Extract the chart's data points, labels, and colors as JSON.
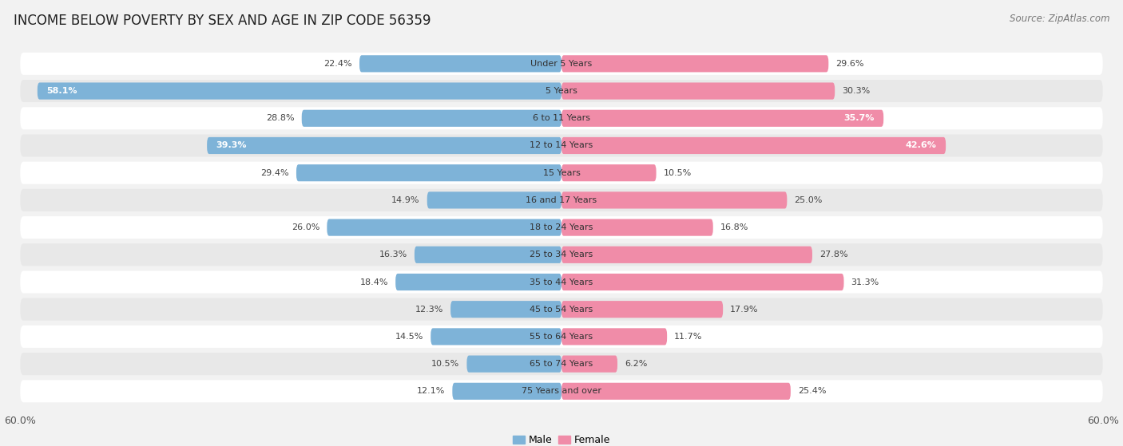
{
  "title": "INCOME BELOW POVERTY BY SEX AND AGE IN ZIP CODE 56359",
  "source": "Source: ZipAtlas.com",
  "categories": [
    "Under 5 Years",
    "5 Years",
    "6 to 11 Years",
    "12 to 14 Years",
    "15 Years",
    "16 and 17 Years",
    "18 to 24 Years",
    "25 to 34 Years",
    "35 to 44 Years",
    "45 to 54 Years",
    "55 to 64 Years",
    "65 to 74 Years",
    "75 Years and over"
  ],
  "male_values": [
    22.4,
    58.1,
    28.8,
    39.3,
    29.4,
    14.9,
    26.0,
    16.3,
    18.4,
    12.3,
    14.5,
    10.5,
    12.1
  ],
  "female_values": [
    29.6,
    30.3,
    35.7,
    42.6,
    10.5,
    25.0,
    16.8,
    27.8,
    31.3,
    17.9,
    11.7,
    6.2,
    25.4
  ],
  "male_color": "#7eb3d8",
  "female_color": "#f08ca8",
  "male_color_light": "#aecde8",
  "female_color_light": "#f8b8ca",
  "axis_max": 60.0,
  "background_color": "#f2f2f2",
  "row_bg_even": "#ffffff",
  "row_bg_odd": "#e8e8e8",
  "title_fontsize": 12,
  "source_fontsize": 8.5,
  "label_fontsize": 8,
  "category_fontsize": 8,
  "axis_label_fontsize": 9,
  "legend_fontsize": 9,
  "bar_height": 0.62,
  "white_label_threshold": 35
}
